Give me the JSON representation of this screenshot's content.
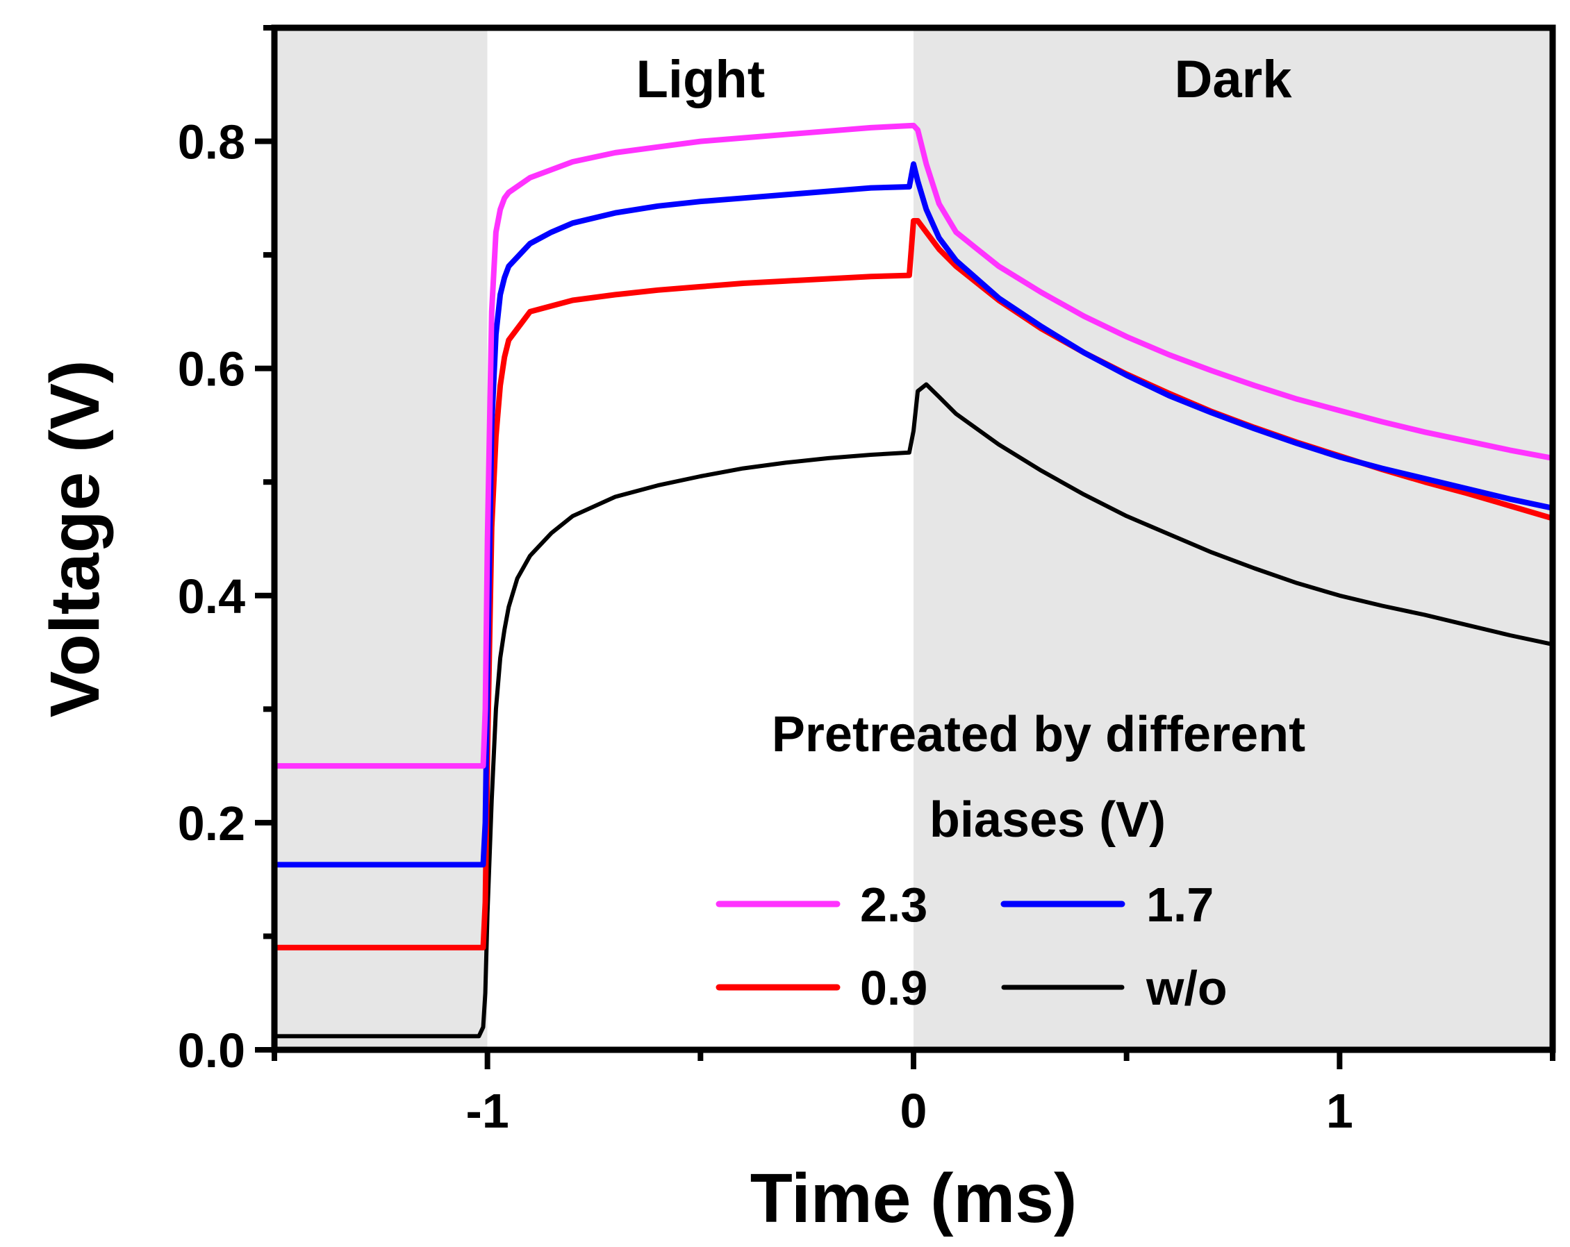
{
  "chart_data": {
    "type": "line",
    "title": "",
    "xlabel": "Time (ms)",
    "ylabel": "Voltage (V)",
    "xlim": [
      -1.5,
      1.5
    ],
    "ylim": [
      0.0,
      0.9
    ],
    "x_ticks": [
      {
        "value": -1,
        "label": "-1"
      },
      {
        "value": 0,
        "label": "0"
      },
      {
        "value": 1,
        "label": "1"
      }
    ],
    "x_minor_ticks": [
      -1.5,
      -0.5,
      0.5,
      1.5
    ],
    "y_ticks": [
      {
        "value": 0.0,
        "label": "0.0"
      },
      {
        "value": 0.2,
        "label": "0.2"
      },
      {
        "value": 0.4,
        "label": "0.4"
      },
      {
        "value": 0.6,
        "label": "0.6"
      },
      {
        "value": 0.8,
        "label": "0.8"
      }
    ],
    "y_minor_ticks": [
      0.1,
      0.3,
      0.5,
      0.7,
      0.9
    ],
    "regions": [
      {
        "name": "pre",
        "label": "",
        "x": [
          -1.5,
          -1.0
        ],
        "fill": "#e6e6e6"
      },
      {
        "name": "light",
        "label": "Light",
        "x": [
          -1.0,
          0.0
        ],
        "fill": "#ffffff"
      },
      {
        "name": "dark",
        "label": "Dark",
        "x": [
          0.0,
          1.5
        ],
        "fill": "#e6e6e6"
      }
    ],
    "legend": {
      "title_lines": [
        "Pretreated by different",
        "biases (V)"
      ],
      "position": "lower-right"
    },
    "series": [
      {
        "name": "2.3",
        "color": "#ff33ff",
        "x": [
          -1.5,
          -1.01,
          -1.005,
          -1.0,
          -0.99,
          -0.98,
          -0.97,
          -0.96,
          -0.95,
          -0.9,
          -0.8,
          -0.7,
          -0.6,
          -0.5,
          -0.4,
          -0.3,
          -0.2,
          -0.1,
          0.0,
          0.01,
          0.03,
          0.06,
          0.1,
          0.2,
          0.3,
          0.4,
          0.5,
          0.6,
          0.7,
          0.8,
          0.9,
          1.0,
          1.1,
          1.2,
          1.3,
          1.4,
          1.5
        ],
        "y": [
          0.25,
          0.25,
          0.3,
          0.45,
          0.65,
          0.72,
          0.74,
          0.75,
          0.755,
          0.768,
          0.782,
          0.79,
          0.795,
          0.8,
          0.803,
          0.806,
          0.809,
          0.812,
          0.814,
          0.81,
          0.78,
          0.745,
          0.72,
          0.69,
          0.667,
          0.646,
          0.628,
          0.612,
          0.598,
          0.585,
          0.573,
          0.563,
          0.553,
          0.544,
          0.536,
          0.528,
          0.521
        ]
      },
      {
        "name": "1.7",
        "color": "#0000ff",
        "x": [
          -1.5,
          -1.01,
          -1.005,
          -1.0,
          -0.99,
          -0.98,
          -0.97,
          -0.96,
          -0.95,
          -0.9,
          -0.85,
          -0.8,
          -0.7,
          -0.6,
          -0.5,
          -0.4,
          -0.3,
          -0.2,
          -0.1,
          -0.01,
          0.0,
          0.01,
          0.03,
          0.06,
          0.1,
          0.2,
          0.3,
          0.4,
          0.5,
          0.6,
          0.7,
          0.8,
          0.9,
          1.0,
          1.1,
          1.2,
          1.3,
          1.4,
          1.5
        ],
        "y": [
          0.163,
          0.163,
          0.2,
          0.33,
          0.55,
          0.63,
          0.665,
          0.68,
          0.69,
          0.71,
          0.72,
          0.728,
          0.737,
          0.743,
          0.747,
          0.75,
          0.753,
          0.756,
          0.759,
          0.76,
          0.78,
          0.765,
          0.74,
          0.715,
          0.695,
          0.662,
          0.637,
          0.614,
          0.594,
          0.576,
          0.561,
          0.547,
          0.534,
          0.522,
          0.512,
          0.503,
          0.494,
          0.485,
          0.477
        ]
      },
      {
        "name": "0.9",
        "color": "#ff0000",
        "x": [
          -1.5,
          -1.01,
          -1.005,
          -1.0,
          -0.99,
          -0.98,
          -0.97,
          -0.96,
          -0.95,
          -0.9,
          -0.8,
          -0.7,
          -0.6,
          -0.5,
          -0.4,
          -0.3,
          -0.2,
          -0.1,
          -0.01,
          0.0,
          0.01,
          0.03,
          0.06,
          0.1,
          0.2,
          0.3,
          0.4,
          0.5,
          0.6,
          0.7,
          0.8,
          0.9,
          1.0,
          1.1,
          1.2,
          1.3,
          1.4,
          1.5
        ],
        "y": [
          0.09,
          0.09,
          0.13,
          0.26,
          0.46,
          0.54,
          0.585,
          0.61,
          0.625,
          0.65,
          0.66,
          0.665,
          0.669,
          0.672,
          0.675,
          0.677,
          0.679,
          0.681,
          0.682,
          0.73,
          0.73,
          0.72,
          0.705,
          0.69,
          0.66,
          0.635,
          0.614,
          0.595,
          0.578,
          0.562,
          0.548,
          0.535,
          0.523,
          0.511,
          0.5,
          0.49,
          0.479,
          0.468
        ]
      },
      {
        "name": "w/o",
        "color": "#000000",
        "x": [
          -1.5,
          -1.02,
          -1.01,
          -1.005,
          -1.0,
          -0.99,
          -0.98,
          -0.97,
          -0.96,
          -0.95,
          -0.93,
          -0.9,
          -0.85,
          -0.8,
          -0.7,
          -0.6,
          -0.5,
          -0.4,
          -0.3,
          -0.2,
          -0.1,
          -0.01,
          0.0,
          0.01,
          0.03,
          0.06,
          0.1,
          0.2,
          0.3,
          0.4,
          0.5,
          0.6,
          0.7,
          0.8,
          0.9,
          1.0,
          1.1,
          1.2,
          1.3,
          1.4,
          1.5
        ],
        "y": [
          0.012,
          0.012,
          0.02,
          0.05,
          0.12,
          0.22,
          0.3,
          0.345,
          0.37,
          0.39,
          0.415,
          0.435,
          0.455,
          0.47,
          0.487,
          0.497,
          0.505,
          0.512,
          0.517,
          0.521,
          0.524,
          0.526,
          0.545,
          0.58,
          0.586,
          0.575,
          0.56,
          0.533,
          0.51,
          0.489,
          0.47,
          0.454,
          0.438,
          0.424,
          0.411,
          0.4,
          0.391,
          0.383,
          0.374,
          0.365,
          0.357
        ]
      }
    ]
  }
}
